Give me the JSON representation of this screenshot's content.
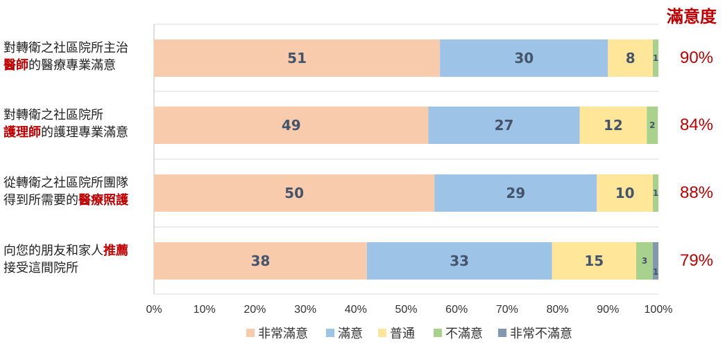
{
  "chart_data": {
    "type": "bar",
    "orientation": "horizontal",
    "stacked": true,
    "title": "",
    "xlabel": "",
    "ylabel": "",
    "xlim": [
      0,
      100
    ],
    "x_ticks": [
      "0%",
      "10%",
      "20%",
      "30%",
      "40%",
      "50%",
      "60%",
      "70%",
      "80%",
      "90%",
      "100%"
    ],
    "grid": true,
    "legend_position": "bottom",
    "categories": [
      {
        "line1": "對轉衛之社區院所主治",
        "line2_highlight": "醫師",
        "line2_rest": "的醫療專業滿意"
      },
      {
        "line1": "對轉衛之社區院所",
        "line2_highlight": "護理師",
        "line2_rest": "的護理專業滿意"
      },
      {
        "line1": "從轉衛之社區院所團隊",
        "line2_prefix": "得到所需要的",
        "line2_highlight": "醫療照護"
      },
      {
        "line1_prefix": "向您的朋友和家人",
        "line1_highlight": "推薦",
        "line2": "接受這間院所"
      }
    ],
    "series": [
      {
        "name": "非常滿意",
        "color": "#f8cbad",
        "values": [
          56.7,
          54.4,
          55.6,
          42.2
        ],
        "labels": [
          "51",
          "49",
          "50",
          "38"
        ]
      },
      {
        "name": "滿意",
        "color": "#9dc3e6",
        "values": [
          33.3,
          30.0,
          32.2,
          36.7
        ],
        "labels": [
          "30",
          "27",
          "29",
          "33"
        ]
      },
      {
        "name": "普通",
        "color": "#ffe699",
        "values": [
          8.9,
          13.3,
          11.1,
          16.7
        ],
        "labels": [
          "8",
          "12",
          "10",
          "15"
        ]
      },
      {
        "name": "不滿意",
        "color": "#a9d18e",
        "values": [
          1.1,
          2.2,
          1.1,
          3.3
        ],
        "labels": [
          "1",
          "2",
          "1",
          "3"
        ]
      },
      {
        "name": "非常不滿意",
        "color": "#8497b0",
        "values": [
          0,
          0,
          0,
          1.1
        ],
        "labels": [
          "",
          "",
          "",
          "1"
        ]
      }
    ],
    "satisfaction": {
      "header": "滿意度",
      "values": [
        "90%",
        "84%",
        "88%",
        "79%"
      ]
    }
  }
}
